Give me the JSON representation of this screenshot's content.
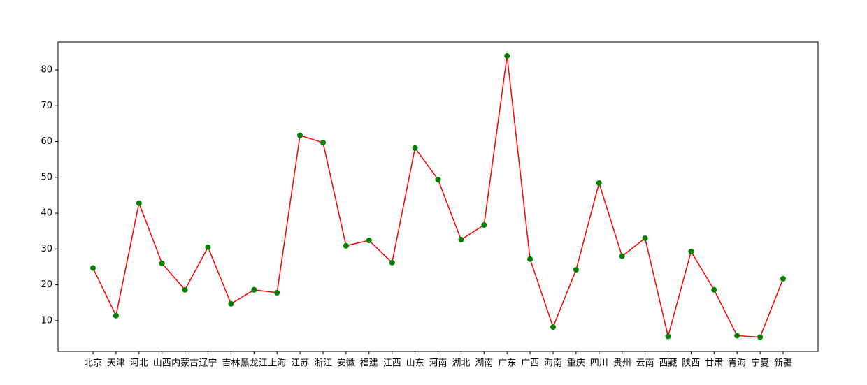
{
  "chart_data": {
    "type": "line",
    "categories": [
      "北京",
      "天津",
      "河北",
      "山西",
      "内蒙古",
      "辽宁",
      "吉林",
      "黑龙江",
      "上海",
      "江苏",
      "浙江",
      "安徽",
      "福建",
      "江西",
      "山东",
      "河南",
      "湖北",
      "湖南",
      "广东",
      "广西",
      "海南",
      "重庆",
      "四川",
      "贵州",
      "云南",
      "西藏",
      "陕西",
      "甘肃",
      "青海",
      "宁夏",
      "新疆"
    ],
    "series": [
      {
        "color": "#ff0000",
        "marker_color": "#008000",
        "values": [
          24.7,
          11.4,
          42.8,
          26.0,
          18.6,
          30.5,
          14.7,
          18.6,
          17.8,
          61.7,
          59.7,
          30.9,
          32.4,
          26.2,
          58.2,
          49.4,
          32.6,
          36.7,
          83.9,
          27.2,
          8.2,
          24.2,
          48.4,
          28.0,
          33.0,
          5.6,
          29.3,
          18.6,
          5.8,
          5.4,
          21.7
        ]
      }
    ],
    "ylim": [
      1.4,
      87.8
    ],
    "yticks": [
      10,
      20,
      30,
      40,
      50,
      60,
      70,
      80
    ],
    "grid": false
  }
}
